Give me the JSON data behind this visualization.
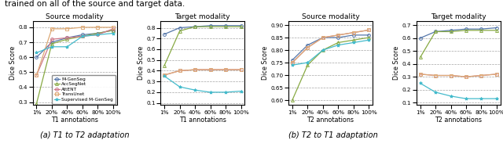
{
  "x_labels": [
    "1%",
    "20%",
    "40%",
    "60%",
    "80%",
    "100%"
  ],
  "x_vals": [
    0,
    1,
    2,
    3,
    4,
    5
  ],
  "a_source": {
    "title": "Source modality",
    "xlabel": "T1 annotations",
    "ylabel": "Dice Score",
    "ylim": [
      0.28,
      0.84
    ],
    "yticks": [
      0.3,
      0.4,
      0.5,
      0.6,
      0.7,
      0.8
    ],
    "M-GenSeg": [
      0.6,
      0.7,
      0.73,
      0.75,
      0.76,
      0.78
    ],
    "AccSegNet": [
      0.29,
      0.69,
      0.72,
      0.74,
      0.76,
      0.78
    ],
    "AttENT": [
      0.48,
      0.72,
      0.73,
      0.74,
      0.75,
      0.79
    ],
    "TransUnet": [
      0.48,
      0.79,
      0.79,
      0.8,
      0.8,
      0.8
    ],
    "Supervised M-GenSeg": [
      0.63,
      0.67,
      0.67,
      0.74,
      0.75,
      0.76
    ]
  },
  "a_target": {
    "title": "Target modality",
    "xlabel": "T1 annotations",
    "ylabel": "Dice Score",
    "ylim": [
      0.08,
      0.86
    ],
    "yticks": [
      0.1,
      0.2,
      0.3,
      0.4,
      0.5,
      0.6,
      0.7,
      0.8
    ],
    "M-GenSeg": [
      0.74,
      0.8,
      0.81,
      0.82,
      0.82,
      0.82
    ],
    "AccSegNet": [
      0.45,
      0.77,
      0.81,
      0.81,
      0.81,
      0.81
    ],
    "AttENT": [
      0.36,
      0.4,
      0.41,
      0.41,
      0.41,
      0.41
    ],
    "TransUnet": [
      0.36,
      0.4,
      0.41,
      0.41,
      0.41,
      0.41
    ],
    "Supervised M-GenSeg": [
      0.35,
      0.25,
      0.22,
      0.2,
      0.2,
      0.21
    ]
  },
  "b_source": {
    "title": "Source modality",
    "xlabel": "T2 annotations",
    "ylabel": "Dice Score",
    "ylim": [
      0.58,
      0.915
    ],
    "yticks": [
      0.6,
      0.65,
      0.7,
      0.75,
      0.8,
      0.85,
      0.9
    ],
    "M-GenSeg": [
      0.76,
      0.82,
      0.85,
      0.85,
      0.86,
      0.86
    ],
    "AccSegNet": [
      0.6,
      0.74,
      0.8,
      0.83,
      0.84,
      0.85
    ],
    "AttENT": [
      0.75,
      0.81,
      0.85,
      0.86,
      0.87,
      0.88
    ],
    "TransUnet": [
      0.75,
      0.81,
      0.85,
      0.86,
      0.87,
      0.88
    ],
    "Supervised M-GenSeg": [
      0.74,
      0.75,
      0.8,
      0.82,
      0.83,
      0.84
    ]
  },
  "b_target": {
    "title": "Target modality",
    "xlabel": "T2 annotations",
    "ylabel": "Dice Score",
    "ylim": [
      0.08,
      0.73
    ],
    "yticks": [
      0.1,
      0.2,
      0.3,
      0.4,
      0.5,
      0.6,
      0.7
    ],
    "M-GenSeg": [
      0.6,
      0.65,
      0.66,
      0.67,
      0.67,
      0.68
    ],
    "AccSegNet": [
      0.45,
      0.65,
      0.65,
      0.66,
      0.66,
      0.66
    ],
    "AttENT": [
      0.32,
      0.31,
      0.31,
      0.3,
      0.31,
      0.32
    ],
    "TransUnet": [
      0.32,
      0.31,
      0.31,
      0.3,
      0.31,
      0.32
    ],
    "Supervised M-GenSeg": [
      0.25,
      0.18,
      0.15,
      0.13,
      0.13,
      0.13
    ]
  },
  "colors": {
    "M-GenSeg": "#5577aa",
    "AccSegNet": "#88aa44",
    "AttENT": "#cc7788",
    "TransUnet": "#ddaa77",
    "Supervised M-GenSeg": "#44bbcc"
  },
  "markers": {
    "M-GenSeg": "o",
    "AccSegNet": "^",
    "AttENT": "o",
    "TransUnet": "s",
    "Supervised M-GenSeg": "*"
  },
  "caption_a": "(a) T1 to T2 adaptation",
  "caption_b": "(b) T2 to T1 adaptation",
  "top_text": "trained on all of the source and target data."
}
